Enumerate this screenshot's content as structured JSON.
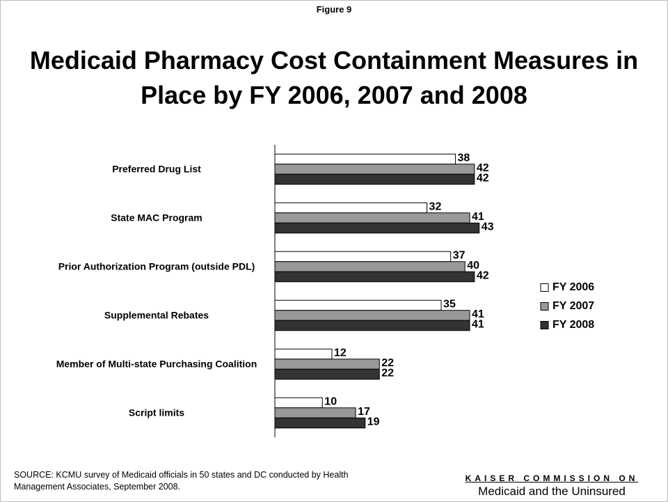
{
  "chart_data": {
    "type": "bar",
    "orientation": "horizontal",
    "figure_label": "Figure 9",
    "title": "Medicaid Pharmacy Cost Containment Measures in Place by FY 2006, 2007 and 2008",
    "categories": [
      "Preferred Drug List",
      "State MAC Program",
      "Prior Authorization Program (outside PDL)",
      "Supplemental Rebates",
      "Member of Multi-state Purchasing Coalition",
      "Script limits"
    ],
    "series": [
      {
        "name": "FY 2006",
        "color": "#ffffff",
        "values": [
          38,
          32,
          37,
          35,
          12,
          10
        ]
      },
      {
        "name": "FY 2007",
        "color": "#999999",
        "values": [
          42,
          41,
          40,
          41,
          22,
          17
        ]
      },
      {
        "name": "FY 2008",
        "color": "#333333",
        "values": [
          42,
          43,
          42,
          41,
          22,
          19
        ]
      }
    ],
    "xlim": [
      0,
      50
    ],
    "legend": "right",
    "source": "SOURCE: KCMU survey of Medicaid officials in 50 states and DC conducted by Health Management Associates, September 2008.",
    "logo_top": "KAISER COMMISSION ON",
    "logo_bottom": "Medicaid and the Uninsured"
  }
}
